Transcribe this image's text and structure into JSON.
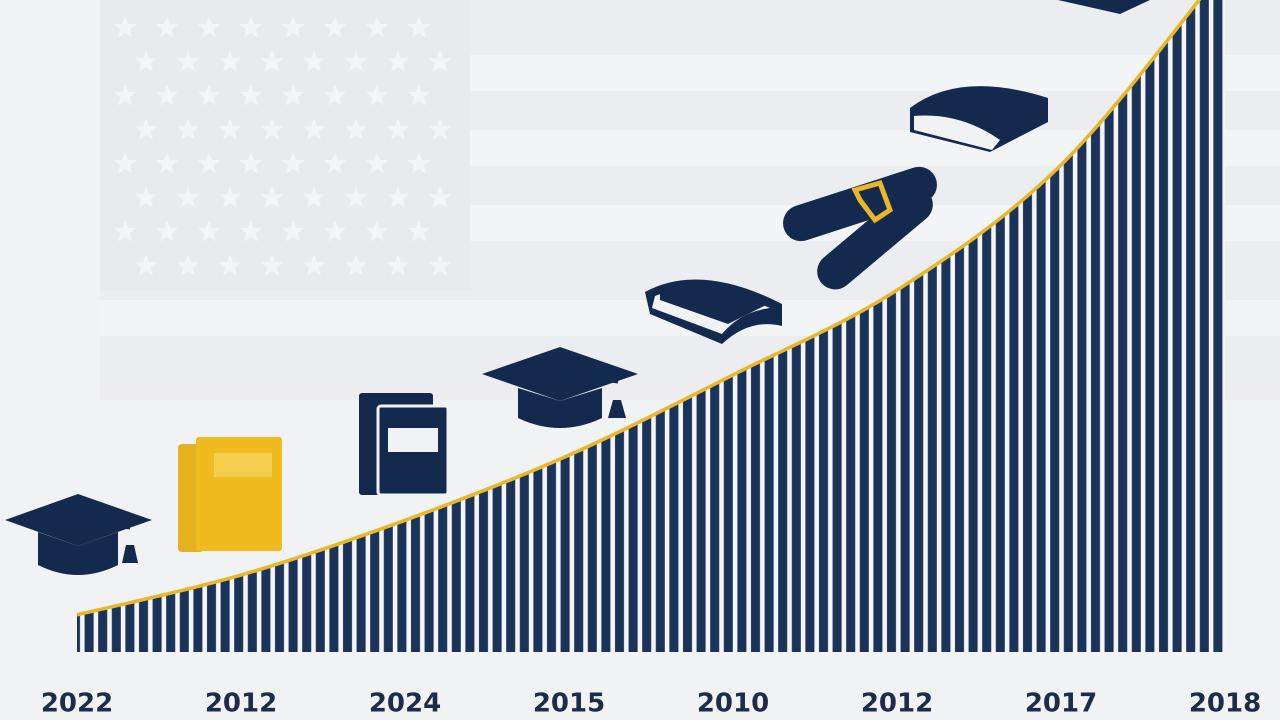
{
  "chart_data": {
    "type": "area",
    "categories": [
      "2022",
      "2012",
      "2024",
      "2015",
      "2010",
      "2012",
      "2017",
      "2018"
    ],
    "values": [
      5.7,
      11.8,
      20.2,
      30.2,
      42.5,
      55.5,
      74.7,
      105
    ],
    "color": "#1b3358",
    "line_color": "#e8b72a",
    "ylim": [
      0,
      100
    ]
  }
}
